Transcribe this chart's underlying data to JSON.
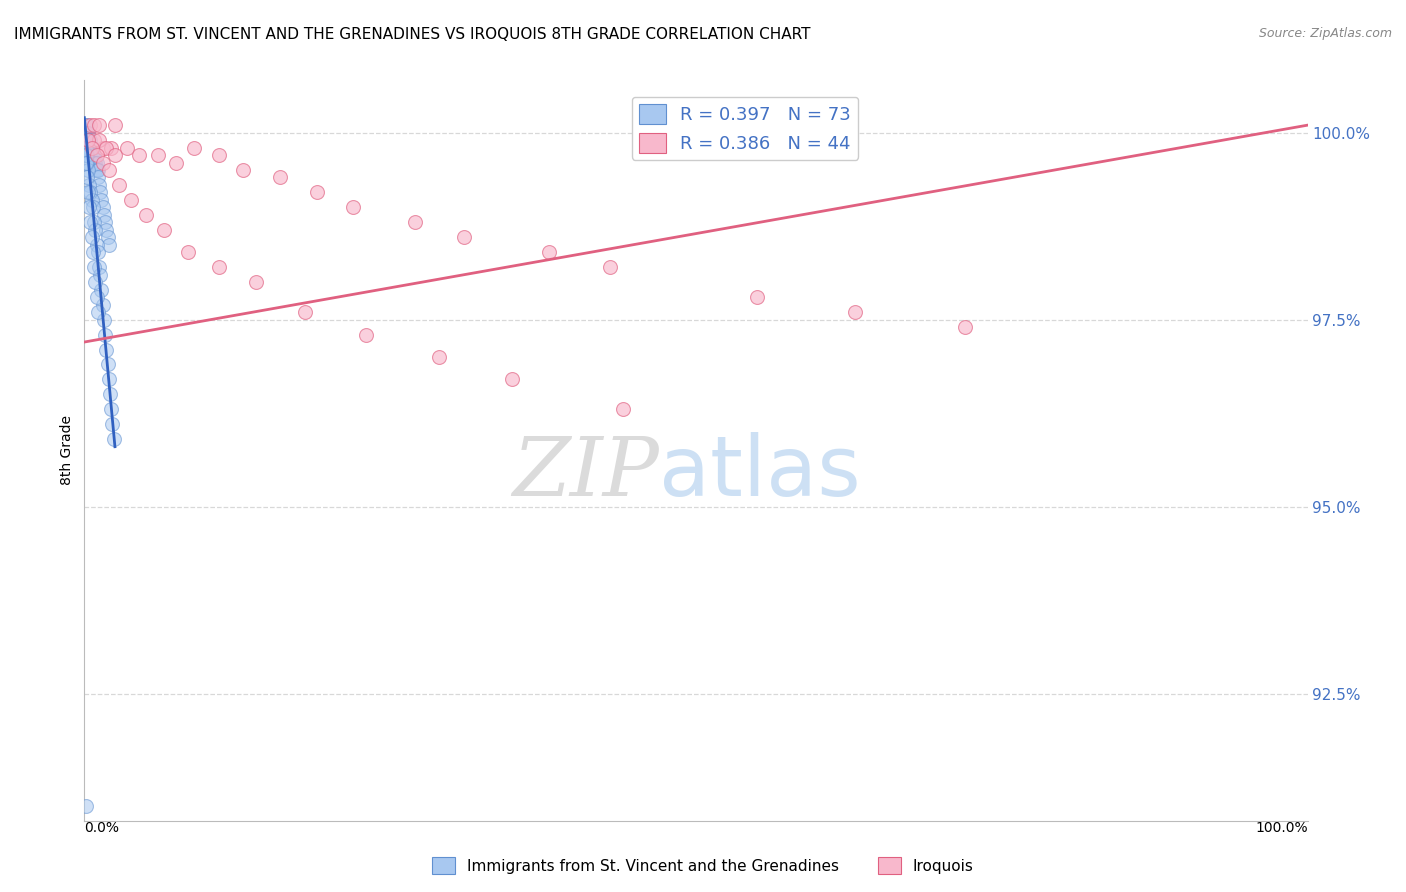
{
  "title": "IMMIGRANTS FROM ST. VINCENT AND THE GRENADINES VS IROQUOIS 8TH GRADE CORRELATION CHART",
  "source": "Source: ZipAtlas.com",
  "ylabel": "8th Grade",
  "yaxis_labels": [
    "100.0%",
    "97.5%",
    "95.0%",
    "92.5%"
  ],
  "yaxis_values": [
    1.0,
    0.975,
    0.95,
    0.925
  ],
  "xlim": [
    0.0,
    1.0
  ],
  "ylim": [
    0.908,
    1.007
  ],
  "blue_scatter_x": [
    0.001,
    0.001,
    0.002,
    0.002,
    0.002,
    0.003,
    0.003,
    0.003,
    0.004,
    0.004,
    0.005,
    0.005,
    0.005,
    0.006,
    0.006,
    0.007,
    0.007,
    0.008,
    0.008,
    0.009,
    0.009,
    0.01,
    0.01,
    0.011,
    0.011,
    0.012,
    0.013,
    0.014,
    0.015,
    0.016,
    0.017,
    0.018,
    0.019,
    0.02,
    0.001,
    0.001,
    0.002,
    0.002,
    0.003,
    0.004,
    0.005,
    0.006,
    0.007,
    0.008,
    0.009,
    0.01,
    0.011,
    0.012,
    0.013,
    0.014,
    0.015,
    0.016,
    0.017,
    0.018,
    0.019,
    0.02,
    0.021,
    0.022,
    0.023,
    0.024,
    0.001,
    0.001,
    0.002,
    0.003,
    0.004,
    0.005,
    0.006,
    0.007,
    0.008,
    0.009,
    0.01,
    0.011,
    0.001
  ],
  "blue_scatter_y": [
    1.001,
    1.0,
    1.001,
    1.0,
    0.999,
    1.0,
    0.999,
    0.998,
    0.999,
    0.998,
    0.999,
    0.998,
    0.997,
    0.998,
    0.997,
    0.998,
    0.997,
    0.997,
    0.996,
    0.996,
    0.995,
    0.996,
    0.995,
    0.995,
    0.994,
    0.993,
    0.992,
    0.991,
    0.99,
    0.989,
    0.988,
    0.987,
    0.986,
    0.985,
    0.999,
    0.998,
    0.997,
    0.996,
    0.995,
    0.993,
    0.992,
    0.991,
    0.99,
    0.988,
    0.987,
    0.985,
    0.984,
    0.982,
    0.981,
    0.979,
    0.977,
    0.975,
    0.973,
    0.971,
    0.969,
    0.967,
    0.965,
    0.963,
    0.961,
    0.959,
    0.997,
    0.996,
    0.994,
    0.992,
    0.99,
    0.988,
    0.986,
    0.984,
    0.982,
    0.98,
    0.978,
    0.976,
    0.91
  ],
  "pink_scatter_x": [
    0.005,
    0.008,
    0.012,
    0.015,
    0.022,
    0.025,
    0.008,
    0.012,
    0.018,
    0.025,
    0.035,
    0.045,
    0.06,
    0.075,
    0.09,
    0.11,
    0.13,
    0.16,
    0.19,
    0.22,
    0.27,
    0.31,
    0.38,
    0.43,
    0.55,
    0.63,
    0.72,
    0.003,
    0.006,
    0.01,
    0.015,
    0.02,
    0.028,
    0.038,
    0.05,
    0.065,
    0.085,
    0.11,
    0.14,
    0.18,
    0.23,
    0.29,
    0.35,
    0.44
  ],
  "pink_scatter_y": [
    1.001,
    1.001,
    1.001,
    0.998,
    0.998,
    1.001,
    0.999,
    0.999,
    0.998,
    0.997,
    0.998,
    0.997,
    0.997,
    0.996,
    0.998,
    0.997,
    0.995,
    0.994,
    0.992,
    0.99,
    0.988,
    0.986,
    0.984,
    0.982,
    0.978,
    0.976,
    0.974,
    0.999,
    0.998,
    0.997,
    0.996,
    0.995,
    0.993,
    0.991,
    0.989,
    0.987,
    0.984,
    0.982,
    0.98,
    0.976,
    0.973,
    0.97,
    0.967,
    0.963
  ],
  "blue_line_x": [
    0.0,
    0.025
  ],
  "blue_line_y": [
    1.002,
    0.958
  ],
  "pink_line_x": [
    0.0,
    1.0
  ],
  "pink_line_y": [
    0.972,
    1.001
  ],
  "watermark_zip": "ZIP",
  "watermark_atlas": "atlas",
  "grid_color": "#d8d8d8",
  "blue_color": "#a8c8f0",
  "blue_edge_color": "#6090d0",
  "pink_color": "#f8b8cc",
  "pink_edge_color": "#e06080",
  "blue_line_color": "#3060c0",
  "pink_line_color": "#e06080",
  "title_fontsize": 11,
  "source_fontsize": 9,
  "legend_entries": [
    {
      "label": "R = 0.397   N = 73"
    },
    {
      "label": "R = 0.386   N = 44"
    }
  ],
  "legend_bottom": [
    {
      "label": "Immigrants from St. Vincent and the Grenadines"
    },
    {
      "label": "Iroquois"
    }
  ]
}
